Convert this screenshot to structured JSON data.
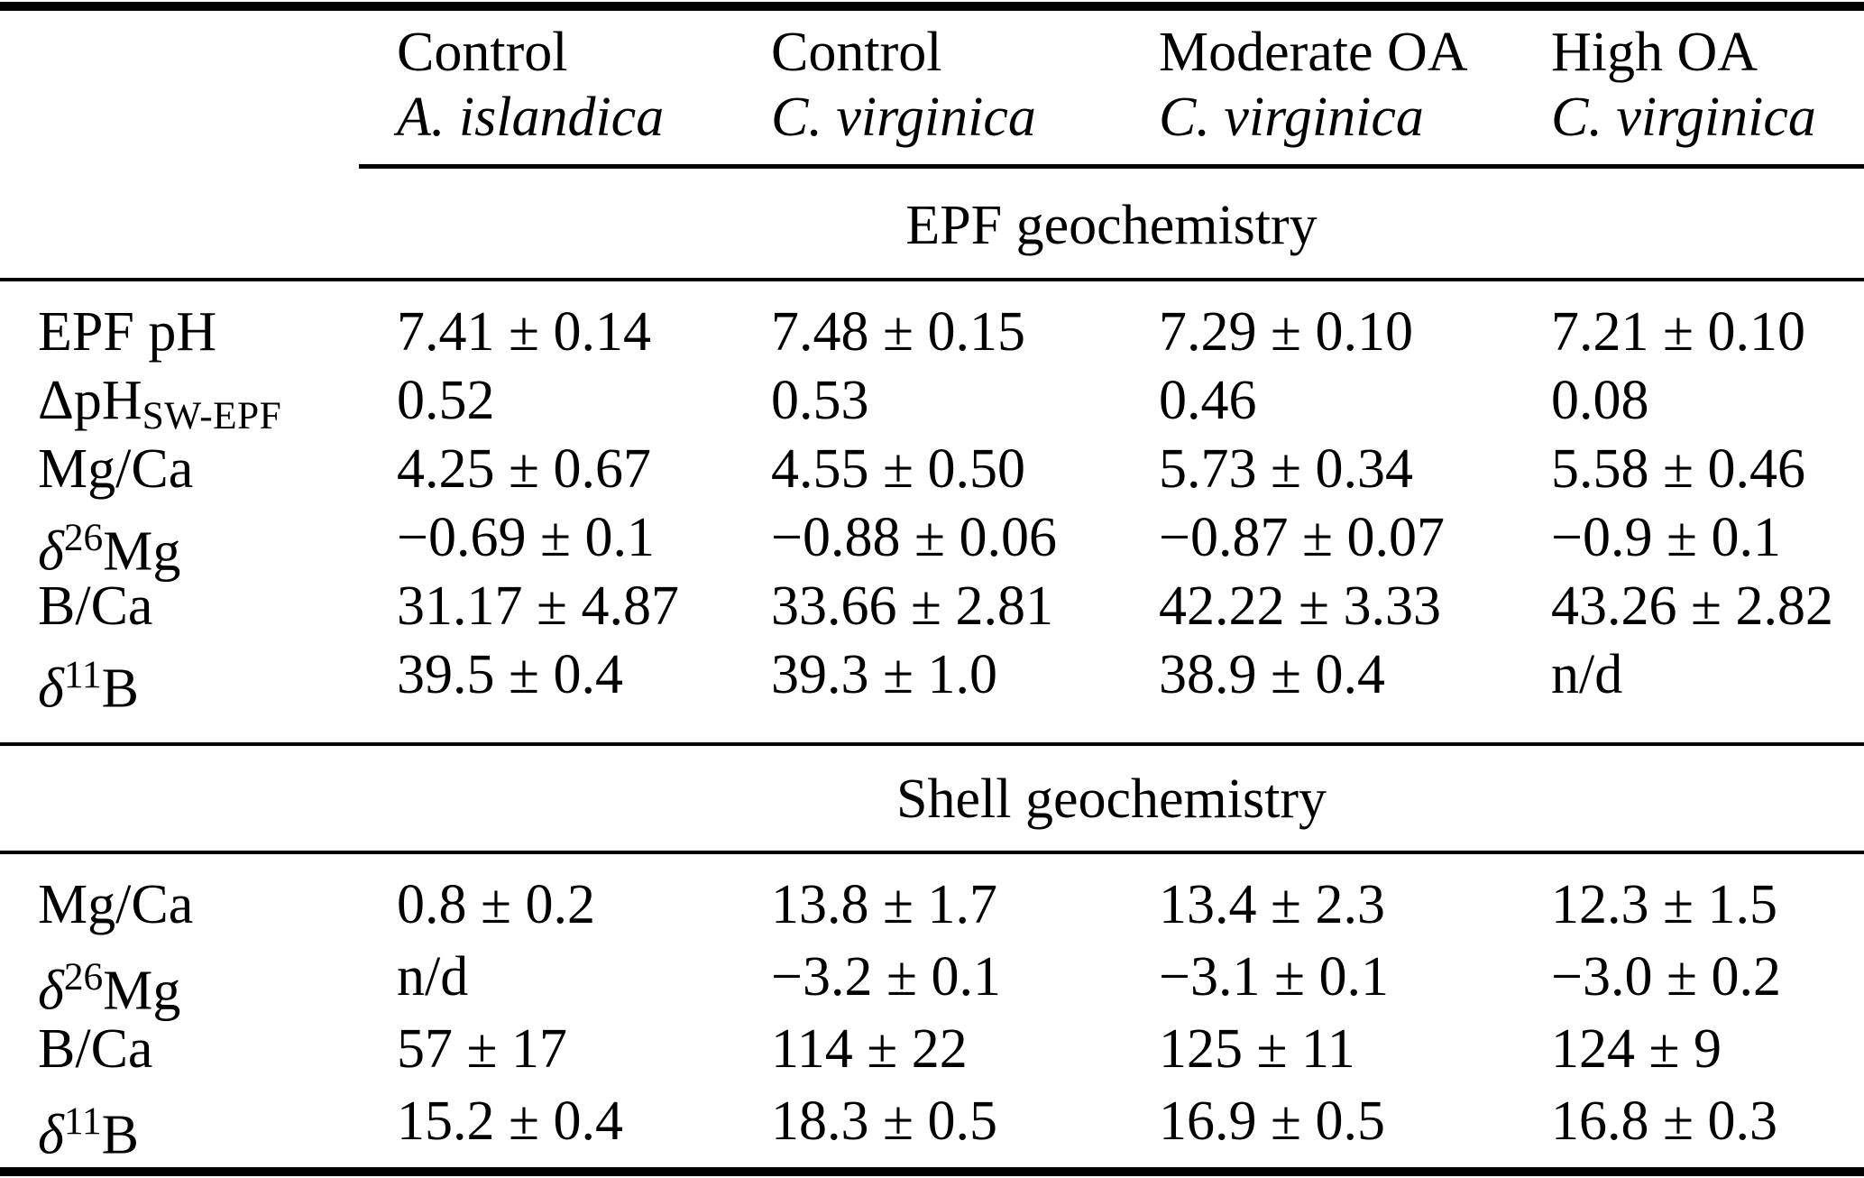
{
  "table": {
    "header": {
      "columns": [
        {
          "treatment": "Control",
          "species": "A. islandica"
        },
        {
          "treatment": "Control",
          "species": "C. virginica"
        },
        {
          "treatment": "Moderate OA",
          "species": "C. virginica"
        },
        {
          "treatment": "High OA",
          "species": "C. virginica"
        }
      ]
    },
    "sections": [
      {
        "title": "EPF geochemistry",
        "rows": [
          {
            "label": [
              {
                "t": "EPF pH"
              }
            ],
            "values": [
              "7.41 ± 0.14",
              "7.48 ± 0.15",
              "7.29 ± 0.10",
              "7.21 ± 0.10"
            ]
          },
          {
            "label": [
              {
                "t": "ΔpH"
              },
              {
                "t": "SW-EPF",
                "s": "sub"
              }
            ],
            "values": [
              "0.52",
              "0.53",
              "0.46",
              "0.08"
            ]
          },
          {
            "label": [
              {
                "t": "Mg/Ca"
              }
            ],
            "values": [
              "4.25 ± 0.67",
              "4.55 ± 0.50",
              "5.73 ± 0.34",
              "5.58 ± 0.46"
            ]
          },
          {
            "label": [
              {
                "t": "δ",
                "s": "i"
              },
              {
                "t": "26",
                "s": "sup"
              },
              {
                "t": "Mg"
              }
            ],
            "values": [
              "−0.69 ± 0.1",
              "−0.88 ± 0.06",
              "−0.87 ± 0.07",
              "−0.9 ± 0.1"
            ]
          },
          {
            "label": [
              {
                "t": "B/Ca"
              }
            ],
            "values": [
              "31.17 ± 4.87",
              "33.66 ± 2.81",
              "42.22 ± 3.33",
              "43.26 ± 2.82"
            ]
          },
          {
            "label": [
              {
                "t": "δ",
                "s": "i"
              },
              {
                "t": "11",
                "s": "sup"
              },
              {
                "t": "B"
              }
            ],
            "values": [
              "39.5 ± 0.4",
              "39.3 ± 1.0",
              "38.9 ± 0.4",
              "n/d"
            ]
          }
        ]
      },
      {
        "title": "Shell geochemistry",
        "rows": [
          {
            "label": [
              {
                "t": "Mg/Ca"
              }
            ],
            "values": [
              "0.8 ± 0.2",
              "13.8 ± 1.7",
              "13.4 ± 2.3",
              "12.3 ± 1.5"
            ]
          },
          {
            "label": [
              {
                "t": "δ",
                "s": "i"
              },
              {
                "t": "26",
                "s": "sup"
              },
              {
                "t": "Mg"
              }
            ],
            "values": [
              "n/d",
              "−3.2 ± 0.1",
              "−3.1 ± 0.1",
              "−3.0 ± 0.2"
            ]
          },
          {
            "label": [
              {
                "t": "B/Ca"
              }
            ],
            "values": [
              "57 ± 17",
              "114 ± 22",
              "125 ± 11",
              "124 ± 9"
            ]
          },
          {
            "label": [
              {
                "t": "δ",
                "s": "i"
              },
              {
                "t": "11",
                "s": "sup"
              },
              {
                "t": "B"
              }
            ],
            "values": [
              "15.2 ± 0.4",
              "18.3 ± 0.5",
              "16.9 ± 0.5",
              "16.8 ± 0.3"
            ]
          }
        ]
      }
    ]
  }
}
